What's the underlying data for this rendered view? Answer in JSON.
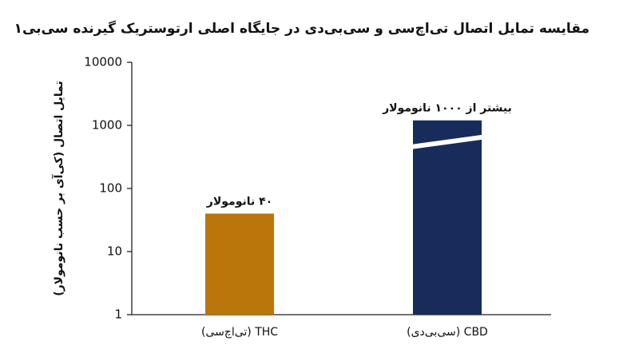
{
  "chart_data": {
    "type": "bar",
    "title": "مقایسه تمایل اتصال تی‌اچ‌سی و سی‌بی‌دی در جایگاه اصلی ارتوستریک گیرنده سی‌بی۱",
    "y_label": "تمایل اتصال (کی‌آی بر حسب نانومولار)",
    "categories": [
      "THC (تی‌اچ‌سی)",
      "CBD (سی‌بی‌دی)"
    ],
    "values": [
      40,
      1200
    ],
    "value_labels": [
      "۴۰ نانومولار",
      "بیشتر از ۱۰۰۰ نانومولار"
    ],
    "colors": [
      "#bb760b",
      "#172c5b"
    ],
    "break": [
      false,
      true
    ],
    "log_y": true,
    "ylim": [
      1,
      10000
    ],
    "yticks": [
      1,
      10,
      100,
      1000,
      10000
    ]
  }
}
